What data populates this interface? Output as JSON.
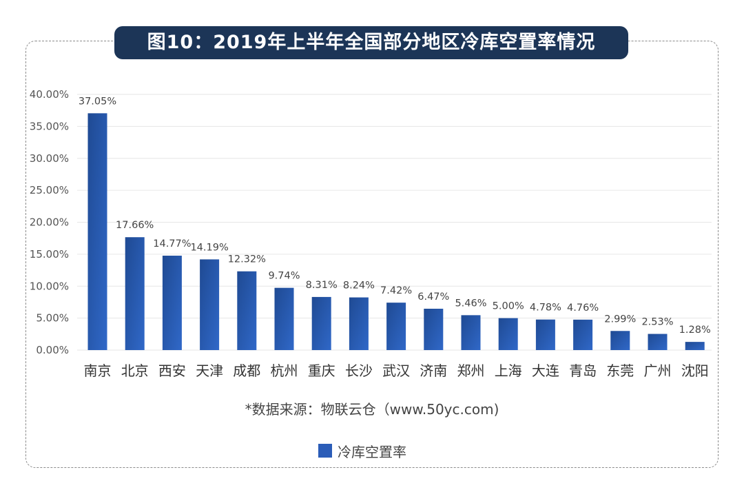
{
  "chart_data": {
    "type": "bar",
    "title": "图10：2019年上半年全国部分地区冷库空置率情况",
    "categories": [
      "南京",
      "北京",
      "西安",
      "天津",
      "成都",
      "杭州",
      "重庆",
      "长沙",
      "武汉",
      "济南",
      "郑州",
      "上海",
      "大连",
      "青岛",
      "东莞",
      "广州",
      "沈阳"
    ],
    "series": [
      {
        "name": "冷库空置率",
        "values": [
          37.05,
          17.66,
          14.77,
          14.19,
          12.32,
          9.74,
          8.31,
          8.24,
          7.42,
          6.47,
          5.46,
          5.0,
          4.78,
          4.76,
          2.99,
          2.53,
          1.28
        ],
        "labels": [
          "37.05%",
          "17.66%",
          "14.77%",
          "14.19%",
          "12.32%",
          "9.74%",
          "8.31%",
          "8.24%",
          "7.42%",
          "6.47%",
          "5.46%",
          "5.00%",
          "4.78%",
          "4.76%",
          "2.99%",
          "2.53%",
          "1.28%"
        ],
        "color": "#2b5db8"
      }
    ],
    "ylim": [
      0,
      40
    ],
    "yticks": [
      0,
      5,
      10,
      15,
      20,
      25,
      30,
      35,
      40
    ],
    "ytick_labels": [
      "0.00%",
      "5.00%",
      "10.00%",
      "15.00%",
      "20.00%",
      "25.00%",
      "30.00%",
      "35.00%",
      "40.00%"
    ],
    "xlabel": "",
    "ylabel": "",
    "grid": true,
    "legend_position": "bottom",
    "source_note": "*数据来源：物联云仓（www.50yc.com)"
  },
  "colors": {
    "title_bg": "#1c3557",
    "bar_dark": "#1f4a93",
    "bar_light": "#3068c8",
    "grid": "#e6e6e6"
  }
}
